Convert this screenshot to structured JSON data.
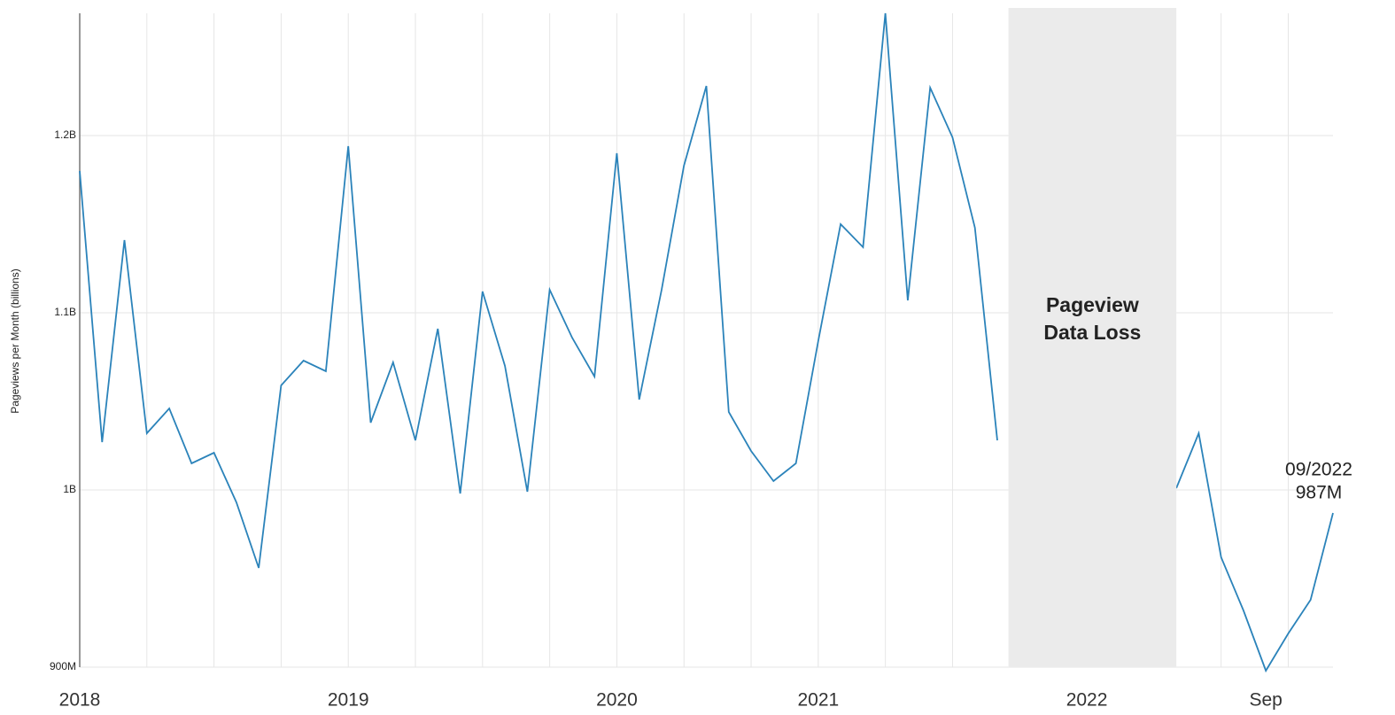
{
  "chart_data": {
    "type": "line",
    "y_label": "Pageviews per Month (billions)",
    "categories": [
      "2018",
      null,
      null,
      null,
      null,
      null,
      null,
      null,
      null,
      null,
      null,
      null,
      "2019",
      null,
      null,
      null,
      null,
      null,
      null,
      null,
      null,
      null,
      null,
      null,
      "2020",
      null,
      null,
      null,
      null,
      null,
      null,
      null,
      null,
      "2021",
      null,
      null,
      null,
      null,
      null,
      null,
      null,
      null,
      null,
      null,
      null,
      "2022",
      null,
      null,
      null,
      null,
      null,
      null,
      null,
      "Sep",
      null,
      null,
      null
    ],
    "series": [
      {
        "name": "Pageviews",
        "color": "#2b83ba",
        "values": [
          1180,
          1027,
          1141,
          1032,
          1046,
          1015,
          1021,
          993,
          956,
          1059,
          1073,
          1067,
          1194,
          1038,
          1072,
          1028,
          1091,
          998,
          1112,
          1070,
          999,
          1113,
          1086,
          1064,
          1190,
          1051,
          1113,
          1183,
          1228,
          1044,
          1022,
          1005,
          1015,
          1084,
          1150,
          1137,
          1269,
          1107,
          1227,
          1199,
          1148,
          1028,
          null,
          null,
          null,
          null,
          null,
          null,
          null,
          1001,
          1032,
          962,
          932,
          898,
          919,
          938,
          987
        ],
        "value_labels": [
          null,
          null,
          null,
          null,
          null,
          null,
          null,
          null,
          null,
          null,
          null,
          null,
          null,
          null,
          null,
          null,
          null,
          null,
          null,
          null,
          null,
          null,
          null,
          null,
          null,
          null,
          null,
          null,
          null,
          null,
          null,
          null,
          null,
          null,
          null,
          null,
          null,
          null,
          null,
          null,
          null,
          null,
          null,
          null,
          null,
          null,
          null,
          null,
          null,
          null,
          null,
          null,
          null,
          null,
          null,
          null,
          "987M"
        ]
      }
    ],
    "end_annotation": "09/2022",
    "shaded_region": {
      "x": [
        41.5,
        49
      ],
      "lines": [
        "Pageview",
        "Data Loss"
      ],
      "color": "#ebebeb"
    },
    "ylim": [
      900,
      1273
    ],
    "yticks": [
      {
        "value": 900,
        "label": "900M"
      },
      {
        "value": 1000,
        "label": "1B"
      },
      {
        "value": 1100,
        "label": "1.1B"
      },
      {
        "value": 1200,
        "label": "1.2B"
      }
    ],
    "grid": true
  }
}
